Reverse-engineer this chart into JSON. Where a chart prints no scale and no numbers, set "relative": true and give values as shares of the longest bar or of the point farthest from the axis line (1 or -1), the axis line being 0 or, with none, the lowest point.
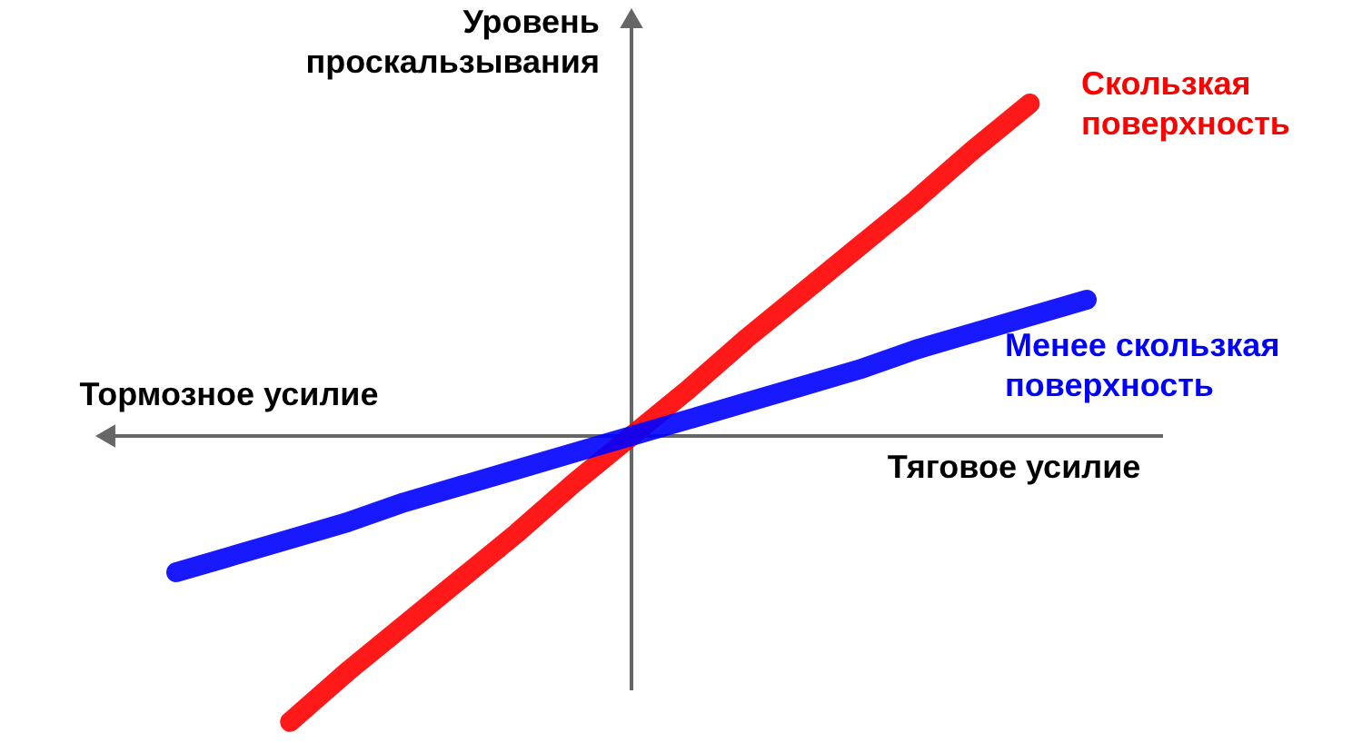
{
  "chart_data": {
    "type": "line",
    "relative": true,
    "ylabel": "Уровень проскальзывания",
    "xlabel": "Тяговое усилие",
    "annotations": [
      "Тормозное усилие"
    ],
    "categories": [
      null,
      null,
      null,
      null,
      null,
      null,
      null,
      null,
      null,
      null,
      null,
      null,
      null,
      null,
      null,
      null,
      null
    ],
    "series": [
      {
        "name": "Скользкая поверхность",
        "color": "#ff0000",
        "values": [
          null,
          null,
          -0.86,
          -0.71,
          -0.57,
          -0.43,
          -0.29,
          -0.14,
          0,
          0.14,
          0.29,
          0.43,
          0.57,
          0.71,
          0.86,
          1,
          null
        ]
      },
      {
        "name": "Менее скользкая поверхность",
        "color": "#0000ff",
        "values": [
          -0.41,
          -0.36,
          -0.31,
          -0.26,
          -0.2,
          -0.15,
          -0.1,
          -0.05,
          0,
          0.05,
          0.1,
          0.15,
          0.2,
          0.26,
          0.31,
          0.36,
          0.41
        ]
      }
    ]
  }
}
